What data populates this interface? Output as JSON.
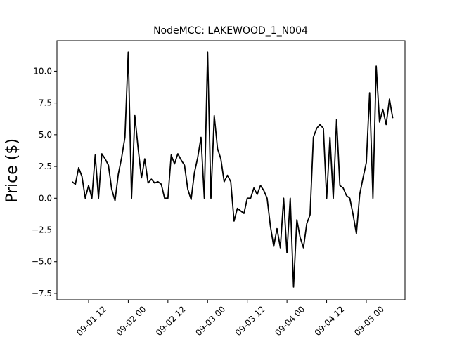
{
  "chart_data": {
    "type": "line",
    "title": "NodeMCC: LAKEWOOD_1_N004",
    "ylabel": "Price ($)",
    "x": [
      "09-01 07",
      "09-01 08",
      "09-01 09",
      "09-01 10",
      "09-01 11",
      "09-01 12",
      "09-01 13",
      "09-01 14",
      "09-01 15",
      "09-01 16",
      "09-01 17",
      "09-01 18",
      "09-01 19",
      "09-01 20",
      "09-01 21",
      "09-01 22",
      "09-01 23",
      "09-02 00",
      "09-02 01",
      "09-02 02",
      "09-02 03",
      "09-02 04",
      "09-02 05",
      "09-02 06",
      "09-02 07",
      "09-02 08",
      "09-02 09",
      "09-02 10",
      "09-02 11",
      "09-02 12",
      "09-02 13",
      "09-02 14",
      "09-02 15",
      "09-02 16",
      "09-02 17",
      "09-02 18",
      "09-02 19",
      "09-02 20",
      "09-02 21",
      "09-02 22",
      "09-02 23",
      "09-03 00",
      "09-03 01",
      "09-03 02",
      "09-03 03",
      "09-03 04",
      "09-03 05",
      "09-03 06",
      "09-03 07",
      "09-03 08",
      "09-03 09",
      "09-03 10",
      "09-03 11",
      "09-03 12",
      "09-03 13",
      "09-03 14",
      "09-03 15",
      "09-03 16",
      "09-03 17",
      "09-03 18",
      "09-03 19",
      "09-03 20",
      "09-03 21",
      "09-03 22",
      "09-03 23",
      "09-04 00",
      "09-04 01",
      "09-04 02",
      "09-04 03",
      "09-04 04",
      "09-04 05",
      "09-04 06",
      "09-04 07",
      "09-04 08",
      "09-04 09",
      "09-04 10",
      "09-04 11",
      "09-04 12",
      "09-04 13",
      "09-04 14",
      "09-04 15",
      "09-04 16",
      "09-04 17",
      "09-04 18",
      "09-04 19",
      "09-04 20",
      "09-04 21",
      "09-04 22",
      "09-04 23",
      "09-05 00",
      "09-05 01",
      "09-05 02",
      "09-05 03",
      "09-05 04",
      "09-05 05",
      "09-05 06",
      "09-05 07",
      "09-05 08"
    ],
    "series": [
      {
        "color": "#000000",
        "values": [
          1.3,
          1.1,
          2.4,
          1.7,
          0.0,
          1.0,
          0.0,
          3.4,
          0.0,
          3.5,
          3.1,
          2.6,
          0.7,
          -0.2,
          1.9,
          3.2,
          4.8,
          11.5,
          0.0,
          6.5,
          3.9,
          1.6,
          3.1,
          1.2,
          1.5,
          1.2,
          1.3,
          1.1,
          0.0,
          0.0,
          3.4,
          2.7,
          3.5,
          3.0,
          2.6,
          0.7,
          -0.1,
          2.0,
          3.2,
          4.8,
          0.0,
          11.5,
          0.0,
          6.5,
          3.9,
          3.1,
          1.3,
          1.8,
          1.3,
          -1.8,
          -0.8,
          -1.0,
          -1.2,
          0.0,
          0.0,
          0.8,
          0.3,
          1.0,
          0.6,
          0.0,
          -2.2,
          -3.8,
          -2.4,
          -3.9,
          0.0,
          -4.3,
          0.0,
          -7.0,
          -1.7,
          -3.1,
          -3.9,
          -2.0,
          -1.3,
          4.8,
          5.5,
          5.8,
          5.5,
          0.0,
          4.8,
          0.0,
          6.2,
          1.0,
          0.8,
          0.2,
          0.0,
          -1.3,
          -2.8,
          0.3,
          1.6,
          2.8,
          8.3,
          0.0,
          10.4,
          6.0,
          7.0,
          5.8,
          7.8,
          6.3
        ]
      }
    ],
    "xlim": [
      "09-01 02:26",
      "09-05 11:42"
    ],
    "xticks": [
      "09-01 12",
      "09-02 00",
      "09-02 12",
      "09-03 00",
      "09-03 12",
      "09-04 00",
      "09-04 12",
      "09-05 00"
    ],
    "ylim": [
      -8.0,
      12.4
    ],
    "yticks": [
      {
        "value": -7.5,
        "label": "−7.5"
      },
      {
        "value": -5.0,
        "label": "−5.0"
      },
      {
        "value": -2.5,
        "label": "−2.5"
      },
      {
        "value": 0,
        "label": "0.0"
      },
      {
        "value": 2.5,
        "label": "2.5"
      },
      {
        "value": 5.0,
        "label": "5.0"
      },
      {
        "value": 7.5,
        "label": "7.5"
      },
      {
        "value": 10.0,
        "label": "10.0"
      }
    ]
  }
}
